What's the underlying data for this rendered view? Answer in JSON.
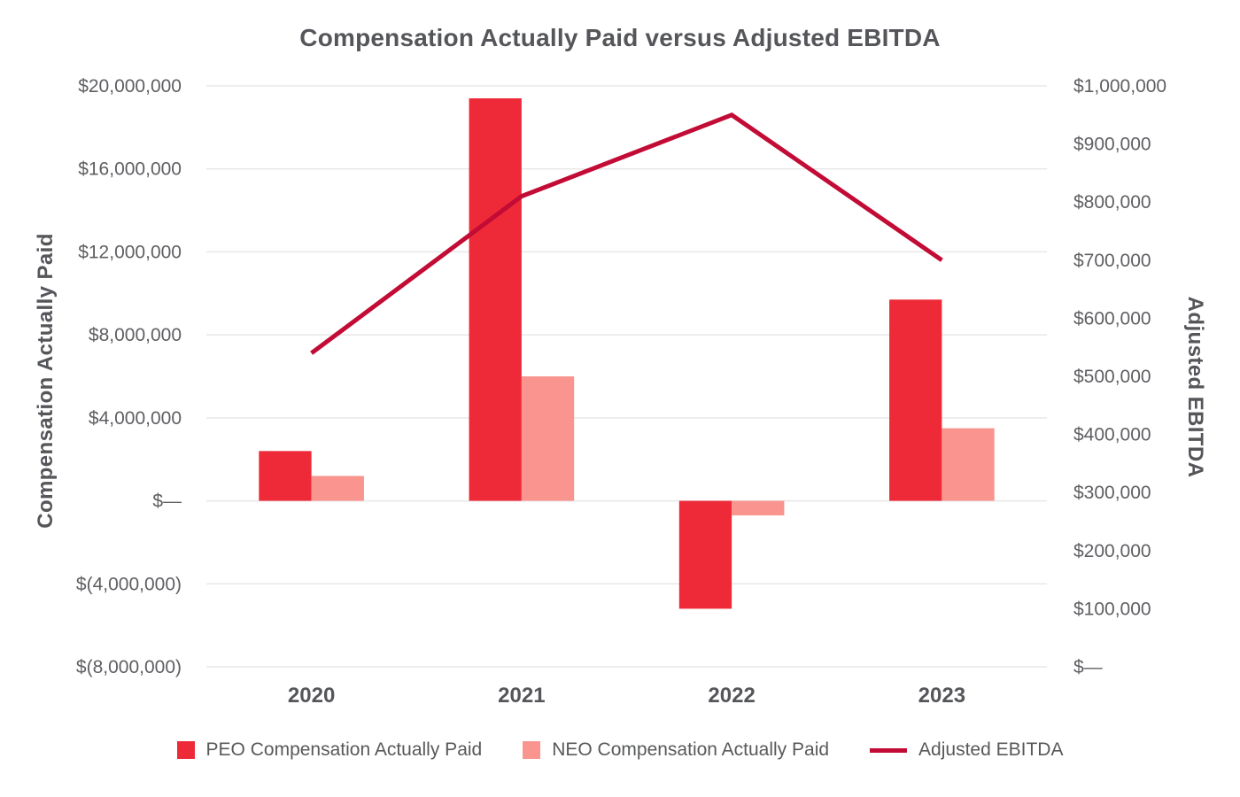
{
  "chart": {
    "title": "Compensation Actually Paid versus Adjusted EBITDA",
    "left_axis_title": "Compensation Actually Paid",
    "right_axis_title": "Adjusted EBITDA",
    "background_color": "#FFFFFF",
    "grid_color": "#E8E8E9",
    "text_color": "#58595B"
  },
  "chart_data": {
    "type": "bar+line",
    "title": "Compensation Actually Paid versus Adjusted EBITDA",
    "categories": [
      "2020",
      "2021",
      "2022",
      "2023"
    ],
    "series": [
      {
        "name": "PEO Compensation Actually Paid",
        "type": "bar",
        "axis": "left",
        "color": "#EE2A38",
        "values": [
          2400000,
          19400000,
          -5200000,
          9700000
        ]
      },
      {
        "name": "NEO Compensation Actually Paid",
        "type": "bar",
        "axis": "left",
        "color": "#FA948F",
        "values": [
          1200000,
          6000000,
          -700000,
          3500000
        ]
      },
      {
        "name": "Adjusted EBITDA",
        "type": "line",
        "axis": "right",
        "color": "#C20B35",
        "values": [
          540000,
          810000,
          950000,
          700000
        ]
      }
    ],
    "left_axis": {
      "title": "Compensation Actually Paid",
      "min": -8000000,
      "max": 20000000,
      "step": 4000000,
      "tick_labels": [
        "$20,000,000",
        "$16,000,000",
        "$12,000,000",
        "$8,000,000",
        "$4,000,000",
        "$—",
        "$(4,000,000)",
        "$(8,000,000)"
      ]
    },
    "right_axis": {
      "title": "Adjusted EBITDA",
      "min": 0,
      "max": 1000000,
      "step": 100000,
      "tick_labels": [
        "$1,000,000",
        "$900,000",
        "$800,000",
        "$700,000",
        "$600,000",
        "$500,000",
        "$400,000",
        "$300,000",
        "$200,000",
        "$100,000",
        "$—"
      ]
    },
    "grid": true,
    "legend_position": "bottom"
  }
}
